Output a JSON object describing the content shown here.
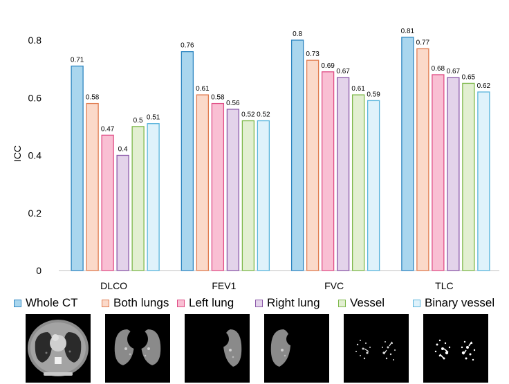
{
  "chart_data": {
    "type": "bar",
    "categories": [
      "DLCO",
      "FEV1",
      "FVC",
      "TLC"
    ],
    "ylabel": "ICC",
    "xlabel": "",
    "ylim": [
      0,
      0.85
    ],
    "yticks": [
      "0",
      "0.2",
      "0.4",
      "0.6",
      "0.8"
    ],
    "grid": false,
    "legend_position": "bottom",
    "series": [
      {
        "name": "Whole CT",
        "values": [
          0.71,
          0.76,
          0.8,
          0.81
        ],
        "labels": [
          "0.71",
          "0.76",
          "0.8",
          "0.81"
        ],
        "fill": "#a9d6ee",
        "stroke": "#2e86c1"
      },
      {
        "name": "Both lungs",
        "values": [
          0.58,
          0.61,
          0.73,
          0.77
        ],
        "labels": [
          "0.58",
          "0.61",
          "0.73",
          "0.77"
        ],
        "fill": "#fbd9c9",
        "stroke": "#e07b4f"
      },
      {
        "name": "Left lung",
        "values": [
          0.47,
          0.58,
          0.69,
          0.68
        ],
        "labels": [
          "0.47",
          "0.58",
          "0.69",
          "0.68"
        ],
        "fill": "#f9bfd3",
        "stroke": "#e04d86"
      },
      {
        "name": "Right lung",
        "values": [
          0.4,
          0.56,
          0.67,
          0.67
        ],
        "labels": [
          "0.4",
          "0.56",
          "0.67",
          "0.67"
        ],
        "fill": "#e3d3ea",
        "stroke": "#8a57a8"
      },
      {
        "name": "Vessel",
        "values": [
          0.5,
          0.52,
          0.61,
          0.65
        ],
        "labels": [
          "0.5",
          "0.52",
          "0.61",
          "0.65"
        ],
        "fill": "#e2efd1",
        "stroke": "#7db84a"
      },
      {
        "name": "Binary vessel",
        "values": [
          0.51,
          0.52,
          0.59,
          0.62
        ],
        "labels": [
          "0.51",
          "0.52",
          "0.59",
          "0.62"
        ],
        "fill": "#dff2fb",
        "stroke": "#58b4dc"
      }
    ]
  },
  "thumbnails": [
    {
      "name": "Whole CT"
    },
    {
      "name": "Both lungs"
    },
    {
      "name": "Left lung"
    },
    {
      "name": "Right lung"
    },
    {
      "name": "Vessel"
    },
    {
      "name": "Binary vessel"
    }
  ]
}
